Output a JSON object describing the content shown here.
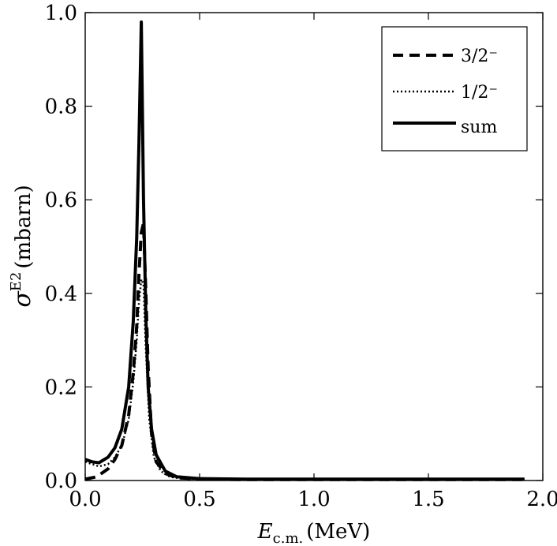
{
  "chart_data": {
    "type": "line",
    "title": "",
    "xlabel": {
      "symbol": "E",
      "subscript": "c.m.",
      "unit": "(MeV)"
    },
    "ylabel": {
      "symbol": "σ",
      "superscript": "E2",
      "unit": "(mbarn)"
    },
    "xlim": [
      0.0,
      2.0
    ],
    "ylim": [
      0.0,
      1.0
    ],
    "xticks": [
      "0.0",
      "0.5",
      "1.0",
      "1.5",
      "2.0"
    ],
    "yticks": [
      "0.0",
      "0.2",
      "0.4",
      "0.6",
      "0.8",
      "1.0"
    ],
    "grid": false,
    "legend": {
      "position": "top-right",
      "entries": [
        {
          "label": "3/2⁻",
          "style": "dashed"
        },
        {
          "label": "1/2⁻",
          "style": "dotted"
        },
        {
          "label": "sum",
          "style": "solid"
        }
      ]
    },
    "series": [
      {
        "name": "3/2⁻",
        "style": "dashed",
        "x": [
          0.0,
          0.05,
          0.1,
          0.13,
          0.16,
          0.19,
          0.21,
          0.225,
          0.235,
          0.245,
          0.255,
          0.265,
          0.275,
          0.29,
          0.31,
          0.35,
          0.4,
          0.5,
          0.7,
          1.0,
          1.5,
          1.92
        ],
        "y": [
          0.003,
          0.008,
          0.025,
          0.045,
          0.075,
          0.14,
          0.23,
          0.33,
          0.44,
          0.53,
          0.55,
          0.4,
          0.24,
          0.1,
          0.04,
          0.015,
          0.006,
          0.003,
          0.002,
          0.002,
          0.002,
          0.002
        ]
      },
      {
        "name": "1/2⁻",
        "style": "dotted",
        "x": [
          0.0,
          0.03,
          0.06,
          0.1,
          0.13,
          0.16,
          0.19,
          0.21,
          0.225,
          0.235,
          0.245,
          0.255,
          0.265,
          0.28,
          0.3,
          0.33,
          0.37,
          0.42,
          0.5,
          0.7,
          1.0,
          1.5,
          1.92
        ],
        "y": [
          0.04,
          0.035,
          0.03,
          0.035,
          0.05,
          0.075,
          0.13,
          0.21,
          0.3,
          0.38,
          0.43,
          0.42,
          0.28,
          0.13,
          0.05,
          0.02,
          0.008,
          0.004,
          0.003,
          0.002,
          0.002,
          0.002,
          0.002
        ]
      },
      {
        "name": "sum",
        "style": "solid",
        "x": [
          0.0,
          0.03,
          0.06,
          0.1,
          0.13,
          0.16,
          0.19,
          0.21,
          0.225,
          0.235,
          0.245,
          0.255,
          0.265,
          0.275,
          0.29,
          0.31,
          0.35,
          0.4,
          0.5,
          0.7,
          1.0,
          1.5,
          1.92
        ],
        "y": [
          0.045,
          0.04,
          0.038,
          0.05,
          0.07,
          0.11,
          0.2,
          0.34,
          0.52,
          0.72,
          0.98,
          0.6,
          0.35,
          0.2,
          0.11,
          0.055,
          0.02,
          0.008,
          0.004,
          0.003,
          0.003,
          0.003,
          0.003
        ]
      }
    ]
  }
}
